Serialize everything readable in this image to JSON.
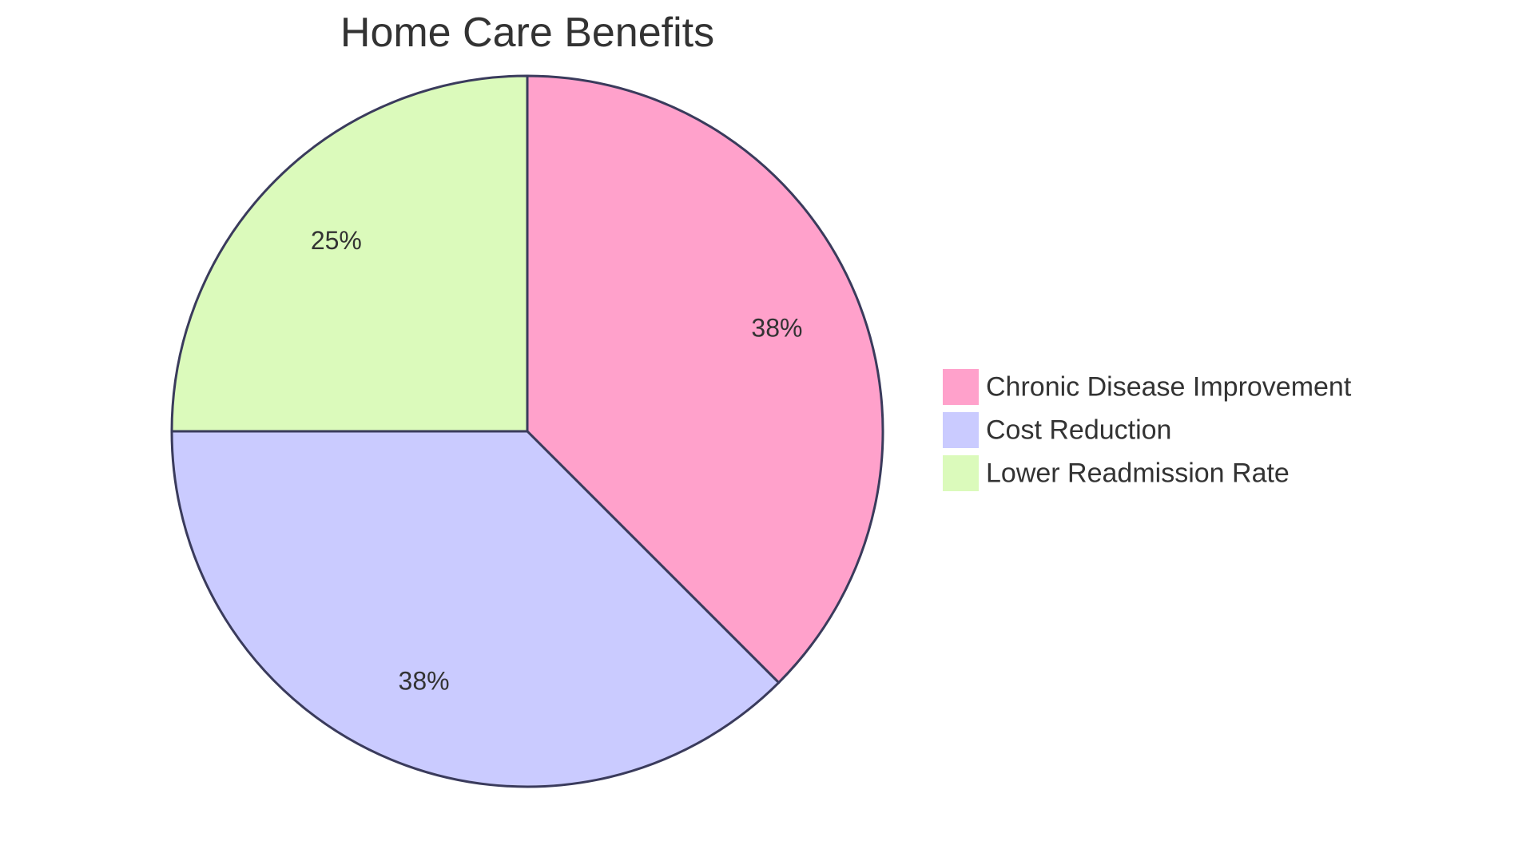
{
  "chart_data": {
    "type": "pie",
    "title": "Home Care Benefits",
    "categories": [
      "Chronic Disease Improvement",
      "Cost Reduction",
      "Lower Readmission Rate"
    ],
    "values": [
      37.5,
      37.5,
      25
    ],
    "labels": [
      "38%",
      "38%",
      "25%"
    ],
    "colors": [
      "#ffa1cb",
      "#cacbff",
      "#dbfabb"
    ],
    "stroke_color": "#3a3b5c",
    "legend_position": "right"
  }
}
